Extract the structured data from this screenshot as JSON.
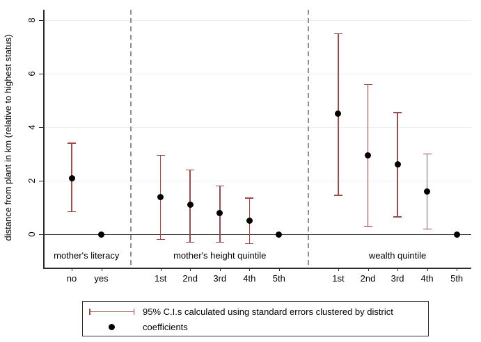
{
  "chart_data": {
    "type": "scatter",
    "title": "",
    "xlabel": "",
    "ylabel": "distance from plant in km (relative to highest status)",
    "ylim": [
      -1.25,
      8.4
    ],
    "yticks": [
      0,
      2,
      4,
      6,
      8
    ],
    "grid": true,
    "legend_position": "bottom",
    "groups": [
      {
        "label": "mother's literacy",
        "items": [
          {
            "x": "no",
            "coef": 2.1,
            "ci_low": 0.85,
            "ci_high": 3.4
          },
          {
            "x": "yes",
            "coef": 0,
            "ci_low": null,
            "ci_high": null
          }
        ]
      },
      {
        "label": "mother's height quintile",
        "items": [
          {
            "x": "1st",
            "coef": 1.4,
            "ci_low": -0.2,
            "ci_high": 2.95
          },
          {
            "x": "2nd",
            "coef": 1.1,
            "ci_low": -0.3,
            "ci_high": 2.4
          },
          {
            "x": "3rd",
            "coef": 0.8,
            "ci_low": -0.3,
            "ci_high": 1.8
          },
          {
            "x": "4th",
            "coef": 0.5,
            "ci_low": -0.35,
            "ci_high": 1.35
          },
          {
            "x": "5th",
            "coef": 0,
            "ci_low": null,
            "ci_high": null
          }
        ]
      },
      {
        "label": "wealth quintile",
        "items": [
          {
            "x": "1st",
            "coef": 4.5,
            "ci_low": 1.45,
            "ci_high": 7.5
          },
          {
            "x": "2nd",
            "coef": 2.95,
            "ci_low": 0.3,
            "ci_high": 5.6
          },
          {
            "x": "3rd",
            "coef": 2.6,
            "ci_low": 0.65,
            "ci_high": 4.55
          },
          {
            "x": "4th",
            "coef": 1.6,
            "ci_low": 0.2,
            "ci_high": 3.0
          },
          {
            "x": "5th",
            "coef": 0,
            "ci_low": null,
            "ci_high": null
          }
        ]
      }
    ],
    "legend": [
      {
        "marker": "ci-bar",
        "label": "95% C.I.s calculated using standard errors clustered by district"
      },
      {
        "marker": "dot",
        "label": "coefficients"
      }
    ],
    "colors": {
      "ci": "#9c4a4a",
      "coef": "#000000",
      "grid": "#e7f2f0",
      "separator": "#8e8e8e",
      "axis": "#2b2b2b"
    }
  }
}
